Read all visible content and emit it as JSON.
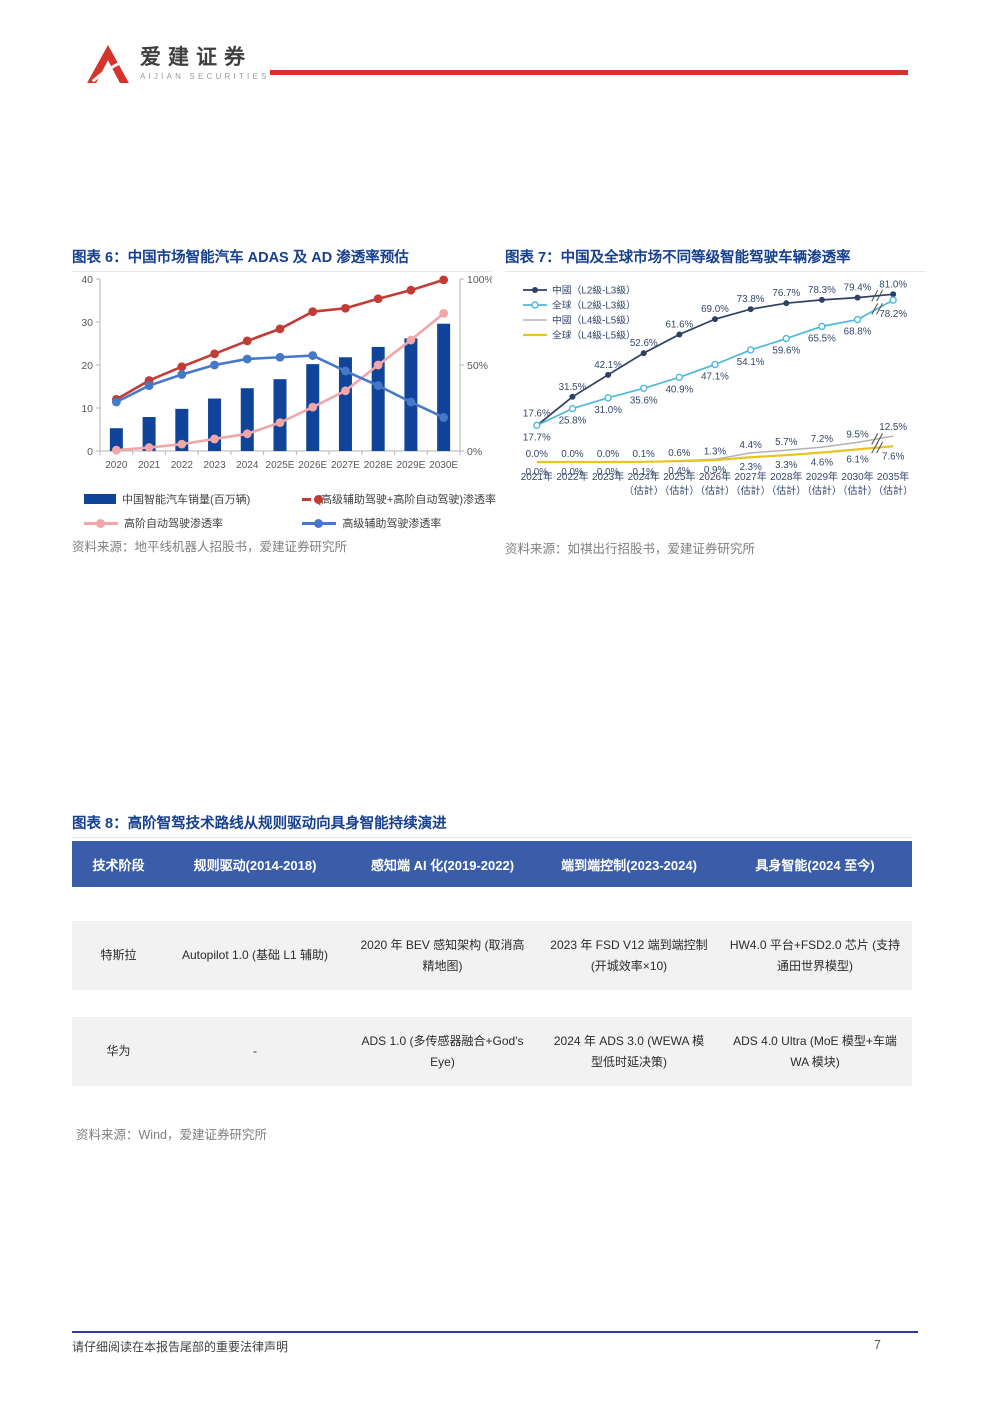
{
  "header": {
    "logo": {
      "brand_cn": "爱建证券",
      "brand_en": "AIJIAN SECURITIES",
      "mark_color": "#D5342C"
    },
    "rule_color": "#D5342C"
  },
  "figure6": {
    "title": "图表 6：中国市场智能汽车 ADAS 及 AD 渗透率预估",
    "source": "资料来源：地平线机器人招股书，爱建证券研究所"
  },
  "figure7": {
    "title": "图表 7：中国及全球市场不同等级智能驾驶车辆渗透率",
    "source": "资料来源：如祺出行招股书，爱建证券研究所"
  },
  "figure8": {
    "title": "图表 8：高阶智驾技术路线从规则驱动向具身智能持续演进",
    "source": "资料来源：Wind，爱建证券研究所",
    "table": {
      "header_bg": "#3B5CA8",
      "row_bg": "#F2F2F2",
      "headers": [
        "技术阶段",
        "规则驱动(2014-2018)",
        "感知端 AI 化(2019-2022)",
        "端到端控制(2023-2024)",
        "具身智能(2024 至今)"
      ],
      "rows": [
        {
          "cells": [
            "特斯拉",
            "Autopilot 1.0 (基础 L1 辅助)",
            "2020 年 BEV 感知架构 (取消高精地图)",
            "2023 年 FSD V12 端到端控制 (开城效率×10)",
            "HW4.0 平台+FSD2.0 芯片 (支持通田世界模型)"
          ]
        },
        {
          "cells": [
            "华为",
            "-",
            "ADS 1.0 (多传感器融合+God's Eye)",
            "2024 年 ADS 3.0 (WEWA 模型低时延决策)",
            "ADS 4.0 Ultra (MoE 模型+车端 WA 模块)"
          ]
        }
      ]
    }
  },
  "footer": {
    "disclaimer": "请仔细阅读在本报告尾部的重要法律声明",
    "page_number": "7",
    "line_color": "#2E3BA0"
  },
  "chart_data": [
    {
      "id": "figure6",
      "type": "bar",
      "title": "图表 6：中国市场智能汽车 ADAS 及 AD 渗透率预估",
      "grid": false,
      "legend_position": "bottom",
      "categories": [
        "2020",
        "2021",
        "2022",
        "2023",
        "2024",
        "2025E",
        "2026E",
        "2027E",
        "2028E",
        "2029E",
        "2030E"
      ],
      "bar_series": {
        "name": "中国智能汽车销量(百万辆)",
        "axis": "left",
        "color": "#10439A",
        "values": [
          5.3,
          7.9,
          9.8,
          12.2,
          14.6,
          16.7,
          20.2,
          21.8,
          24.2,
          26.2,
          29.6
        ]
      },
      "line_series": [
        {
          "name": "(高级辅助驾驶+高阶自动驾驶)渗透率",
          "axis": "right",
          "color": "#C23B35",
          "values": [
            30,
            41,
            49,
            56.5,
            64,
            71,
            81,
            83,
            88.5,
            93.5,
            99.5
          ]
        },
        {
          "name": "高阶自动驾驶渗透率",
          "axis": "right",
          "color": "#F2A6A8",
          "values": [
            0.5,
            2,
            4,
            7,
            10,
            16.5,
            25.5,
            35,
            50,
            64.5,
            80
          ]
        },
        {
          "name": "高级辅助驾驶渗透率",
          "axis": "right",
          "color": "#4678C8",
          "values": [
            28.5,
            38,
            44.5,
            50,
            53.5,
            54.5,
            55.5,
            46.5,
            38,
            28.5,
            19.5
          ]
        }
      ],
      "left_axis": {
        "range": [
          0,
          40
        ],
        "ticks": [
          0,
          10,
          20,
          30,
          40
        ]
      },
      "right_axis": {
        "range": [
          0,
          100
        ],
        "ticks": [
          0,
          50,
          100
        ],
        "tick_labels": [
          "0%",
          "50%",
          "100%"
        ]
      }
    },
    {
      "id": "figure7",
      "type": "line",
      "title": "图表 7：中国及全球市场不同等级智能驾驶车辆渗透率",
      "grid": false,
      "legend_position": "top-left",
      "ylim": [
        0,
        85
      ],
      "categories": [
        "2021年",
        "2022年",
        "2023年",
        "2024年",
        "2025年",
        "2026年",
        "2027年",
        "2028年",
        "2029年",
        "2030年",
        "2035年"
      ],
      "estimate_note": "（估計）",
      "estimate_from_index": 3,
      "axis_break_after_index": 9,
      "series": [
        {
          "name": "中國（L2級-L3級）",
          "color": "#2E4063",
          "marker": "filled-circle",
          "values": [
            17.6,
            31.5,
            42.1,
            52.6,
            61.6,
            69.0,
            73.8,
            76.7,
            78.3,
            79.4,
            81.0
          ]
        },
        {
          "name": "全球（L2級-L3級）",
          "color": "#4DB8DC",
          "marker": "open-circle",
          "values": [
            17.7,
            25.8,
            31.0,
            35.6,
            40.9,
            47.1,
            54.1,
            59.6,
            65.5,
            68.8,
            78.2
          ]
        },
        {
          "name": "中國（L4級-L5級）",
          "color": "#B3B3B3",
          "marker": "none",
          "values": [
            0.0,
            0.0,
            0.0,
            0.1,
            0.6,
            1.3,
            4.4,
            5.7,
            7.2,
            9.5,
            12.5
          ]
        },
        {
          "name": "全球（L4級-L5級）",
          "color": "#E7C520",
          "marker": "none",
          "values": [
            0.0,
            0.0,
            0.0,
            0.1,
            0.4,
            0.9,
            2.3,
            3.3,
            4.6,
            6.1,
            7.6
          ]
        }
      ],
      "label_color": "#33476B"
    }
  ]
}
